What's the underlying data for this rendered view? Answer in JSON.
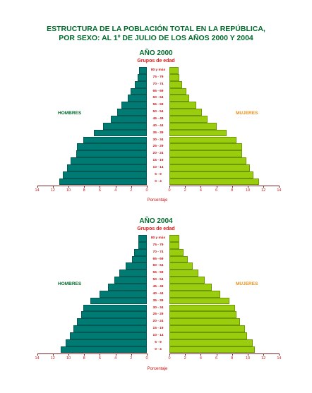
{
  "title": {
    "line1": "ESTRUCTURA DE LA POBLACIÓN TOTAL EN LA REPÚBLICA,",
    "line2": "POR SEXO: AL 1º DE JULIO DE LOS AÑOS 2000 Y 2004"
  },
  "labels": {
    "group": "Grupos de edad",
    "men": "HOMBRES",
    "women": "MUJERES",
    "x_axis": "Porcentaje"
  },
  "colors": {
    "men": "#007b74",
    "women": "#9acd0e",
    "title": "#006a2c",
    "labels": "#e01818"
  },
  "chart_data": [
    {
      "type": "bar",
      "title": "AÑO 2000",
      "categories": [
        "80 y más",
        "75 - 79",
        "70 - 74",
        "65 - 69",
        "60 - 64",
        "55 - 59",
        "50 - 54",
        "45 - 49",
        "40 - 44",
        "35 - 39",
        "30 - 34",
        "25 - 29",
        "20 - 24",
        "15 - 19",
        "10 - 14",
        "5 - 9",
        "0 - 4"
      ],
      "series": [
        {
          "name": "HOMBRES",
          "values": [
            1.0,
            1.2,
            1.5,
            2.1,
            2.4,
            3.2,
            3.8,
            4.6,
            5.6,
            6.8,
            8.1,
            8.9,
            9.0,
            9.7,
            10.2,
            10.7,
            11.2
          ]
        },
        {
          "name": "MUJERES",
          "values": [
            1.2,
            1.3,
            1.6,
            2.2,
            2.5,
            3.4,
            4.1,
            4.9,
            6.0,
            7.3,
            8.6,
            9.3,
            9.3,
            9.8,
            10.3,
            10.7,
            11.4
          ]
        }
      ],
      "xlabel": "Porcentaje",
      "ylabel": "Grupos de edad",
      "xticks": [
        "14",
        "12",
        "10",
        "8",
        "6",
        "4",
        "2",
        "0",
        "0",
        "2",
        "4",
        "6",
        "8",
        "10",
        "12",
        "14"
      ],
      "xlim": [
        0,
        14
      ]
    },
    {
      "type": "bar",
      "title": "AÑO  2004",
      "categories": [
        "80 y más",
        "75 - 79",
        "70 - 74",
        "65 - 69",
        "60 - 64",
        "55 - 59",
        "50 - 54",
        "45 - 49",
        "40 - 44",
        "35 - 39",
        "30 - 34",
        "25 - 29",
        "20 - 24",
        "15 - 19",
        "10 - 14",
        "5 - 9",
        "0 - 4"
      ],
      "series": [
        {
          "name": "HOMBRES",
          "values": [
            1.1,
            1.1,
            1.6,
            1.9,
            2.7,
            3.5,
            4.1,
            5.0,
            6.0,
            7.2,
            8.1,
            8.4,
            8.9,
            9.4,
            9.8,
            10.4,
            11.0
          ]
        },
        {
          "name": "MUJERES",
          "values": [
            1.3,
            1.3,
            1.8,
            2.3,
            3.0,
            3.7,
            4.5,
            5.4,
            6.5,
            7.7,
            8.4,
            8.6,
            9.0,
            9.6,
            9.9,
            10.6,
            10.9
          ]
        }
      ],
      "xlabel": "Porcentaje",
      "ylabel": "Grupos de edad",
      "xticks": [
        "14",
        "12",
        "10",
        "8",
        "6",
        "4",
        "2",
        "0",
        "0",
        "2",
        "4",
        "6",
        "8",
        "10",
        "12",
        "14"
      ],
      "xlim": [
        0,
        14
      ]
    }
  ]
}
